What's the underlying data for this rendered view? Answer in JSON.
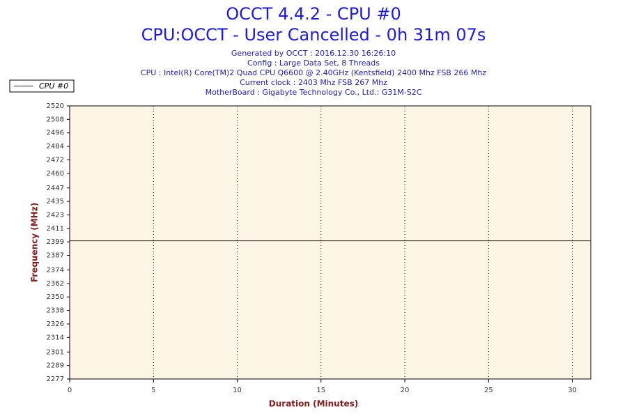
{
  "chart_data": {
    "type": "line",
    "title": "OCCT 4.4.2 - CPU #0",
    "subtitle": "CPU:OCCT - User Cancelled - 0h 31m 07s",
    "info": [
      "Generated by OCCT : 2016.12.30 16:26:10",
      "Config : Large Data Set, 8 Threads",
      "CPU : Intel(R) Core(TM)2 Quad CPU Q6600 @ 2.40GHz (Kentsfield) 2400 Mhz FSB 266 Mhz",
      "Current clock : 2403 Mhz FSB 267 Mhz",
      "MotherBoard : Gigabyte Technology Co., Ltd.: G31M-S2C"
    ],
    "x_label": "Duration (Minutes)",
    "y_label": "Frequency (MHz)",
    "x": [
      0,
      31.1
    ],
    "series": [
      {
        "name": "CPU #0",
        "color": "#3a2020",
        "values": [
          2400,
          2400
        ]
      }
    ],
    "xlim": [
      0,
      31.1
    ],
    "xticks": [
      0,
      5,
      10,
      15,
      20,
      25,
      30
    ],
    "ylim": [
      2277,
      2520
    ],
    "yticks": [
      2277,
      2289,
      2301,
      2314,
      2326,
      2338,
      2350,
      2362,
      2374,
      2387,
      2399,
      2411,
      2423,
      2435,
      2447,
      2460,
      2472,
      2484,
      2496,
      2508,
      2520
    ],
    "x_grid": true,
    "legend": "top-left"
  }
}
